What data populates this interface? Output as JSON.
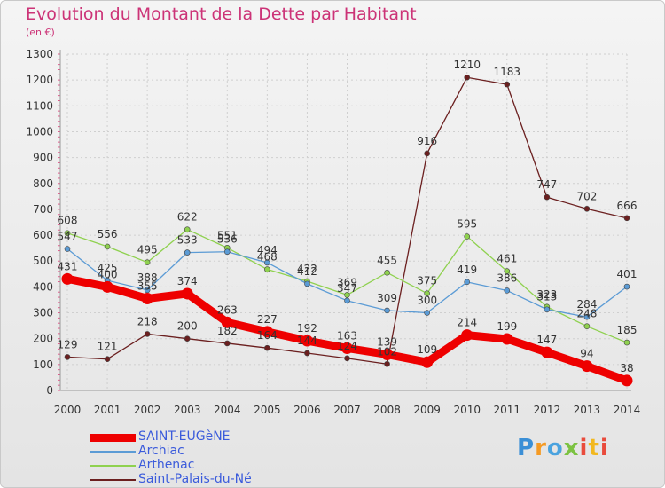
{
  "title": "Evolution du Montant de la Dette par Habitant",
  "subtitle": "(en €)",
  "logo_text": "Proxiti",
  "chart_data": {
    "type": "line",
    "title": "Evolution du Montant de la Dette par Habitant",
    "subtitle": "(en €)",
    "x": [
      2000,
      2001,
      2002,
      2003,
      2004,
      2005,
      2006,
      2007,
      2008,
      2009,
      2010,
      2011,
      2012,
      2013,
      2014
    ],
    "ylim": [
      0,
      1300
    ],
    "yticks": [
      0,
      100,
      200,
      300,
      400,
      500,
      600,
      700,
      800,
      900,
      1000,
      1100,
      1200,
      1300
    ],
    "grid": true,
    "legend_position": "bottom-left",
    "series": [
      {
        "name": "SAINT-EUGèNE",
        "color": "#ee0000",
        "values": [
          431,
          400,
          355,
          374,
          263,
          227,
          192,
          163,
          139,
          109,
          214,
          199,
          147,
          94,
          38
        ],
        "labels": [
          "431",
          "400",
          "355",
          "374",
          "263",
          "227",
          "192",
          "163",
          "139",
          "109",
          "214",
          "199",
          "147",
          "94",
          "38"
        ]
      },
      {
        "name": "Archiac",
        "color": "#5b9bd5",
        "values": [
          547,
          425,
          388,
          533,
          536,
          494,
          412,
          347,
          309,
          300,
          419,
          386,
          313,
          284,
          401
        ],
        "labels": [
          "547",
          "425",
          "388",
          "533",
          "536",
          "494",
          "412",
          "347",
          "309",
          "300",
          "419",
          "386",
          "313",
          "284",
          "401"
        ]
      },
      {
        "name": "Arthenac",
        "color": "#8fd14f",
        "values": [
          608,
          556,
          495,
          622,
          551,
          468,
          422,
          369,
          455,
          375,
          595,
          461,
          323,
          248,
          185
        ],
        "labels": [
          "608",
          "556",
          "495",
          "622",
          "551",
          "468",
          "422",
          "369",
          "455",
          "375",
          "595",
          "461",
          "323",
          "248",
          "185"
        ]
      },
      {
        "name": "Saint-Palais-du-Né",
        "color": "#6b1f1f",
        "values": [
          129,
          121,
          218,
          200,
          182,
          164,
          144,
          124,
          102,
          916,
          1210,
          1183,
          747,
          702,
          666
        ],
        "labels": [
          "129",
          "121",
          "218",
          "200",
          "182",
          "164",
          "144",
          "124",
          "102",
          "916",
          "1210",
          "1183",
          "747",
          "702",
          "666"
        ]
      }
    ]
  }
}
